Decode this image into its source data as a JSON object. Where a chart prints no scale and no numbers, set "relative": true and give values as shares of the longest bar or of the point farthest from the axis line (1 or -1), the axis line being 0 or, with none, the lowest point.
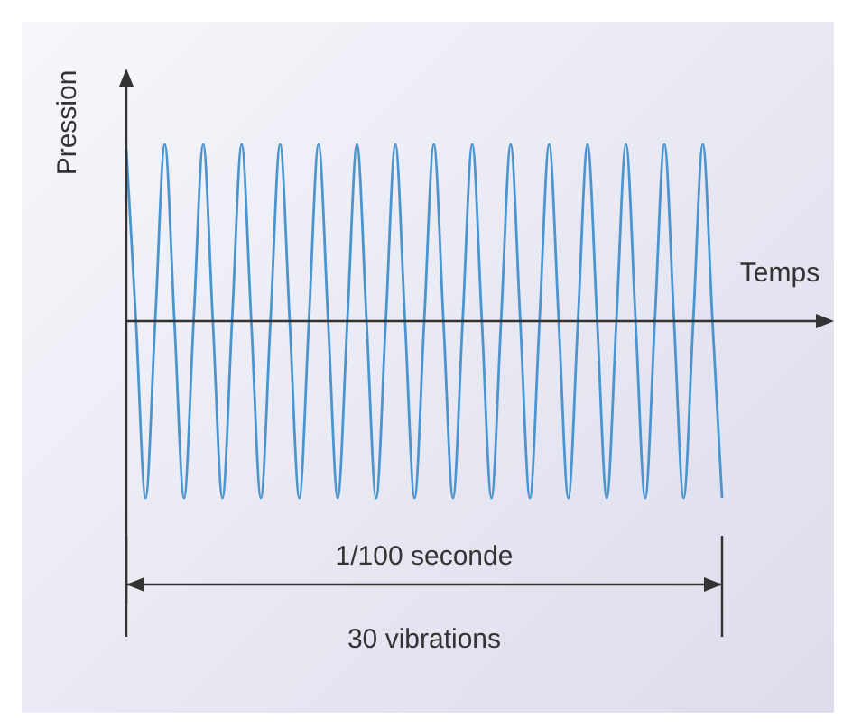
{
  "chart_data": {
    "type": "line",
    "xlabel": "Temps",
    "ylabel": "Pression",
    "relative": true,
    "legend": false,
    "marker": "none",
    "categories": [
      null,
      null,
      null,
      null,
      null,
      null,
      null,
      null,
      null,
      null,
      null,
      null,
      null,
      null,
      null,
      null,
      null,
      null,
      null,
      null,
      null,
      null,
      null,
      null,
      null,
      null,
      null,
      null,
      null,
      null,
      null,
      null,
      null,
      null,
      null,
      null,
      null,
      null,
      null,
      null,
      null,
      null,
      null,
      null,
      null,
      null,
      null,
      null,
      null,
      null,
      null,
      null,
      null,
      null,
      null,
      null,
      null,
      null,
      null,
      null,
      null,
      null,
      null
    ],
    "series": [
      {
        "color": "#4a95d0",
        "values": [
          0.97,
          0,
          -1,
          0,
          1,
          0,
          -1,
          0,
          1,
          0,
          -1,
          0,
          1,
          0,
          -1,
          0,
          1,
          0,
          -1,
          0,
          1,
          0,
          -1,
          0,
          1,
          0,
          -1,
          0,
          1,
          0,
          -1,
          0,
          1,
          0,
          -1,
          0,
          1,
          0,
          -1,
          0,
          1,
          0,
          -1,
          0,
          1,
          0,
          -1,
          0,
          1,
          0,
          -1,
          0,
          1,
          0,
          -1,
          0,
          1,
          0,
          -1,
          0,
          1,
          0,
          -1
        ]
      }
    ],
    "annotations": [
      "1/100 seconde",
      "30 vibrations"
    ]
  }
}
